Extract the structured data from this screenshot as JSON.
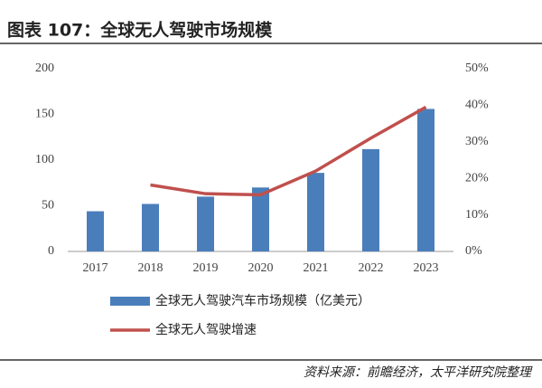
{
  "chart_data": {
    "type": "bar-line",
    "title": "图表 107：全球无人驾驶市场规模",
    "source": "资料来源：前瞻经济，太平洋研究院整理",
    "categories": [
      "2017",
      "2018",
      "2019",
      "2020",
      "2021",
      "2022",
      "2023"
    ],
    "series": [
      {
        "name": "全球无人驾驶汽车市场规模（亿美元）",
        "color": "#4a7ebb",
        "type": "bar",
        "values": [
          44,
          52,
          60,
          70,
          86,
          112,
          156
        ]
      },
      {
        "name": "全球无人驾驶增速",
        "color": "#c0504d",
        "type": "line",
        "axis": "y2",
        "values": [
          null,
          18.2,
          15.8,
          15.5,
          22,
          31,
          39.5
        ]
      }
    ],
    "ylim": [
      0,
      200
    ],
    "yticks": [
      0,
      50,
      100,
      150,
      200
    ],
    "y2lim": [
      0,
      50
    ],
    "y2ticks": [
      {
        "value": 0,
        "label": "0%"
      },
      {
        "value": 10,
        "label": "10%"
      },
      {
        "value": 20,
        "label": "20%"
      },
      {
        "value": 30,
        "label": "30%"
      },
      {
        "value": 40,
        "label": "40%"
      },
      {
        "value": 50,
        "label": "50%"
      }
    ]
  }
}
